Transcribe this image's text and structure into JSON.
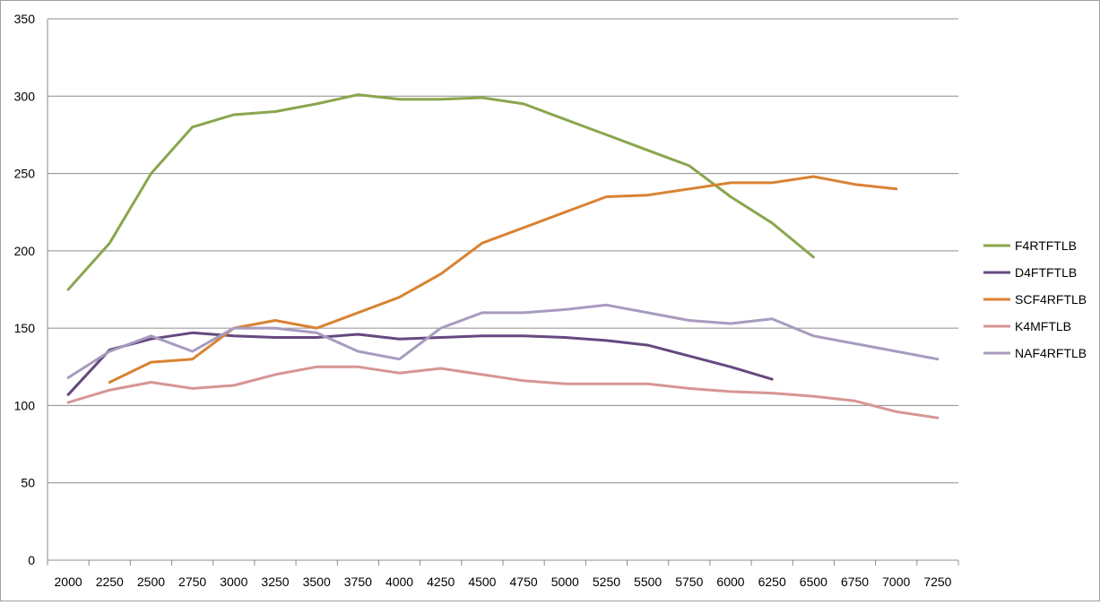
{
  "chart_data": {
    "type": "line",
    "title": "",
    "xlabel": "",
    "ylabel": "",
    "categories": [
      "2000",
      "2250",
      "2500",
      "2750",
      "3000",
      "3250",
      "3500",
      "3750",
      "4000",
      "4250",
      "4500",
      "4750",
      "5000",
      "5250",
      "5500",
      "5750",
      "6000",
      "6250",
      "6500",
      "6750",
      "7000",
      "7250"
    ],
    "ylim": [
      0,
      350
    ],
    "yticks": [
      0,
      50,
      100,
      150,
      200,
      250,
      300,
      350
    ],
    "grid": true,
    "legend": "right",
    "series": [
      {
        "name": "F4RTFTLB",
        "color": "#8aa64e",
        "values": [
          175,
          205,
          250,
          280,
          288,
          290,
          295,
          301,
          298,
          298,
          299,
          295,
          285,
          275,
          265,
          255,
          235,
          218,
          196,
          null,
          null,
          null
        ]
      },
      {
        "name": "D4FTFTLB",
        "color": "#65497f",
        "values": [
          107,
          136,
          143,
          147,
          145,
          144,
          144,
          146,
          143,
          144,
          145,
          145,
          144,
          142,
          139,
          132,
          125,
          117,
          null,
          null,
          null,
          null
        ]
      },
      {
        "name": "SCF4RFTLB",
        "color": "#d98232",
        "values": [
          null,
          115,
          128,
          130,
          150,
          155,
          150,
          160,
          170,
          185,
          205,
          215,
          225,
          235,
          236,
          240,
          244,
          244,
          248,
          243,
          240,
          null
        ]
      },
      {
        "name": "K4MFTLB",
        "color": "#d69594",
        "values": [
          102,
          110,
          115,
          111,
          113,
          120,
          125,
          125,
          121,
          124,
          120,
          116,
          114,
          114,
          114,
          111,
          109,
          108,
          106,
          103,
          96,
          92
        ]
      },
      {
        "name": "NAF4RFTLB",
        "color": "#a89bbf",
        "values": [
          118,
          135,
          145,
          135,
          150,
          150,
          147,
          135,
          130,
          150,
          160,
          160,
          162,
          165,
          160,
          155,
          153,
          156,
          145,
          140,
          135,
          130
        ]
      }
    ]
  }
}
